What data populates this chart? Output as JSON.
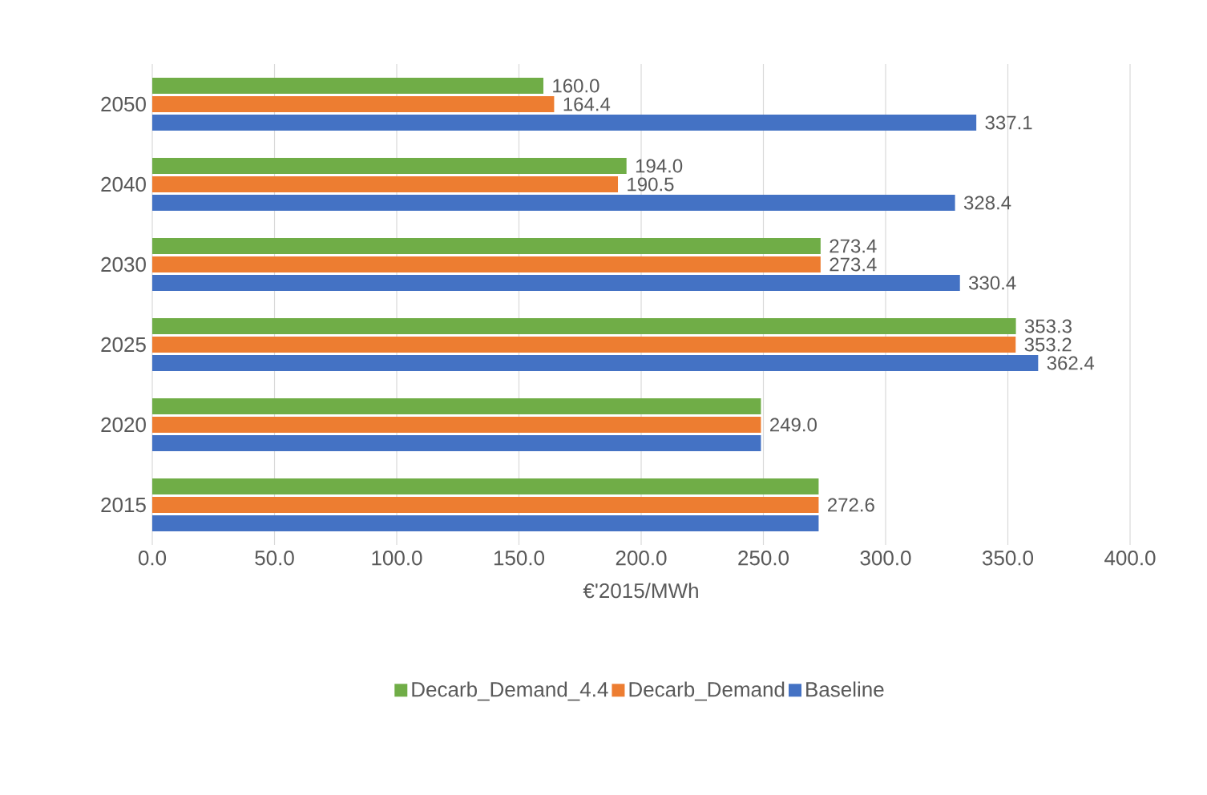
{
  "chart_data": {
    "type": "bar",
    "orientation": "horizontal",
    "xlabel": "€'2015/MWh",
    "categories": [
      "2050",
      "2040",
      "2030",
      "2025",
      "2020",
      "2015"
    ],
    "series": [
      {
        "name": "Decarb_Demand_4.4",
        "color": "#70ad47",
        "values": [
          160.0,
          194.0,
          273.4,
          353.3,
          249.0,
          272.6
        ],
        "value_labels": [
          "160.0",
          "194.0",
          "273.4",
          "353.3",
          null,
          null
        ]
      },
      {
        "name": "Decarb_Demand",
        "color": "#ed7d31",
        "values": [
          164.4,
          190.5,
          273.4,
          353.2,
          249.0,
          272.6
        ],
        "value_labels": [
          "164.4",
          "190.5",
          "273.4",
          "353.2",
          "249.0",
          "272.6"
        ]
      },
      {
        "name": "Baseline",
        "color": "#4472c4",
        "values": [
          337.1,
          328.4,
          330.4,
          362.4,
          249.0,
          272.6
        ],
        "value_labels": [
          "337.1",
          "328.4",
          "330.4",
          "362.4",
          null,
          null
        ]
      }
    ],
    "xlim": [
      0,
      400
    ],
    "xticks": [
      {
        "value": 0,
        "label": "0.0"
      },
      {
        "value": 50,
        "label": "50.0"
      },
      {
        "value": 100,
        "label": "100.0"
      },
      {
        "value": 150,
        "label": "150.0"
      },
      {
        "value": 200,
        "label": "200.0"
      },
      {
        "value": 250,
        "label": "250.0"
      },
      {
        "value": 300,
        "label": "300.0"
      },
      {
        "value": 350,
        "label": "350.0"
      },
      {
        "value": 400,
        "label": "400.0"
      }
    ],
    "grid": "x",
    "legend": "bottom"
  }
}
